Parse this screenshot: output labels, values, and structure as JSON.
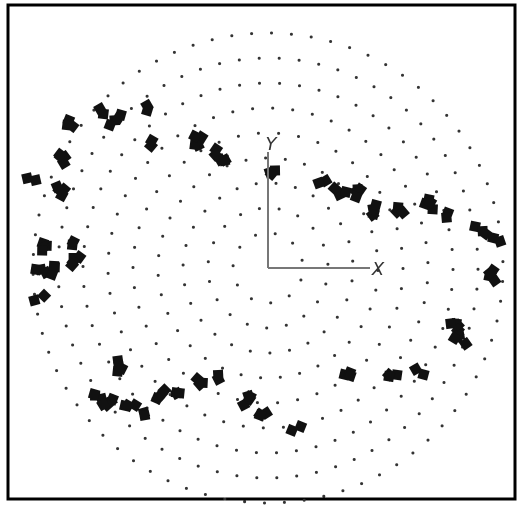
{
  "axes": {
    "y_label": "Y",
    "x_label": "X"
  }
}
